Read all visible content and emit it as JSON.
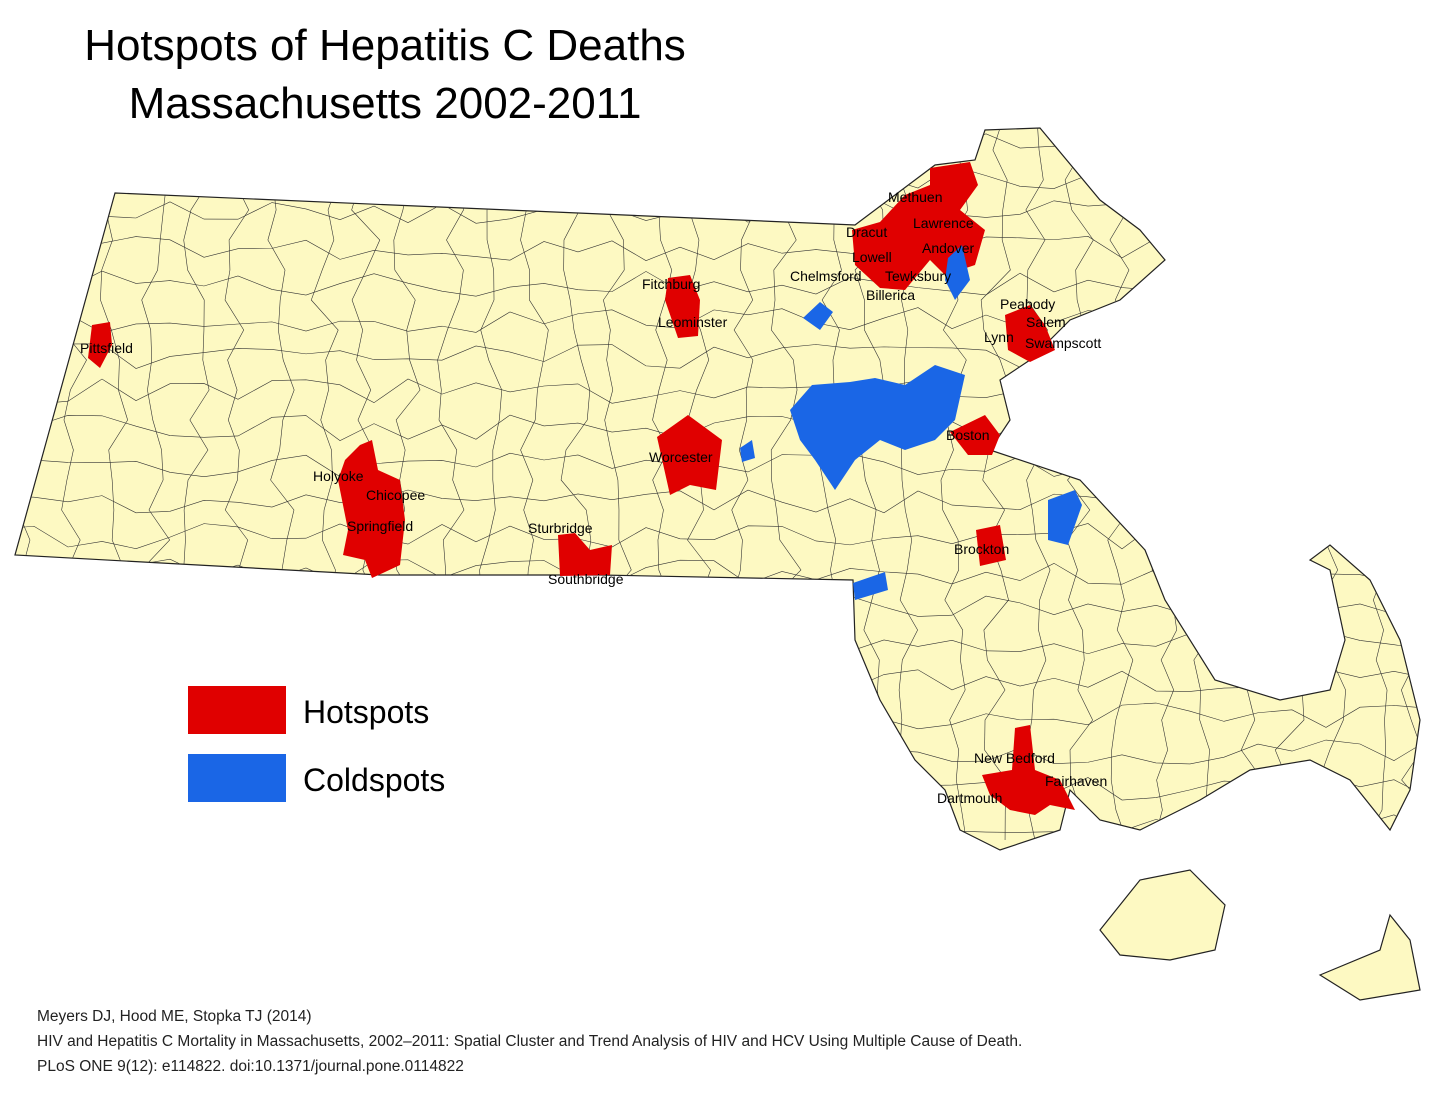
{
  "title": [
    "Hotspots of Hepatitis C Deaths",
    "Massachusetts 2002-2011"
  ],
  "legend": [
    {
      "label": "Hotspots",
      "color": "#e00000"
    },
    {
      "label": "Coldspots",
      "color": "#1a66e6"
    }
  ],
  "labels": [
    "Pittsfield",
    "Holyoke",
    "Chicopee",
    "Springfield",
    "Sturbridge",
    "Southbridge",
    "Worcester",
    "Fitchburg",
    "Leominster",
    "Methuen",
    "Lawrence",
    "Dracut",
    "Andover",
    "Lowell",
    "Chelmsford",
    "Tewksbury",
    "Billerica",
    "Peabody",
    "Salem",
    "Lynn",
    "Swampscott",
    "Boston",
    "Brockton",
    "New Bedford",
    "Fairhaven",
    "Dartmouth"
  ],
  "citation": [
    "Meyers DJ, Hood ME, Stopka TJ (2014)",
    "HIV and Hepatitis C Mortality in Massachusetts, 2002–2011: Spatial Cluster and Trend Analysis of HIV and HCV Using Multiple Cause of Death.",
    "PLoS ONE 9(12): e114822. doi:10.1371/journal.pone.0114822"
  ]
}
